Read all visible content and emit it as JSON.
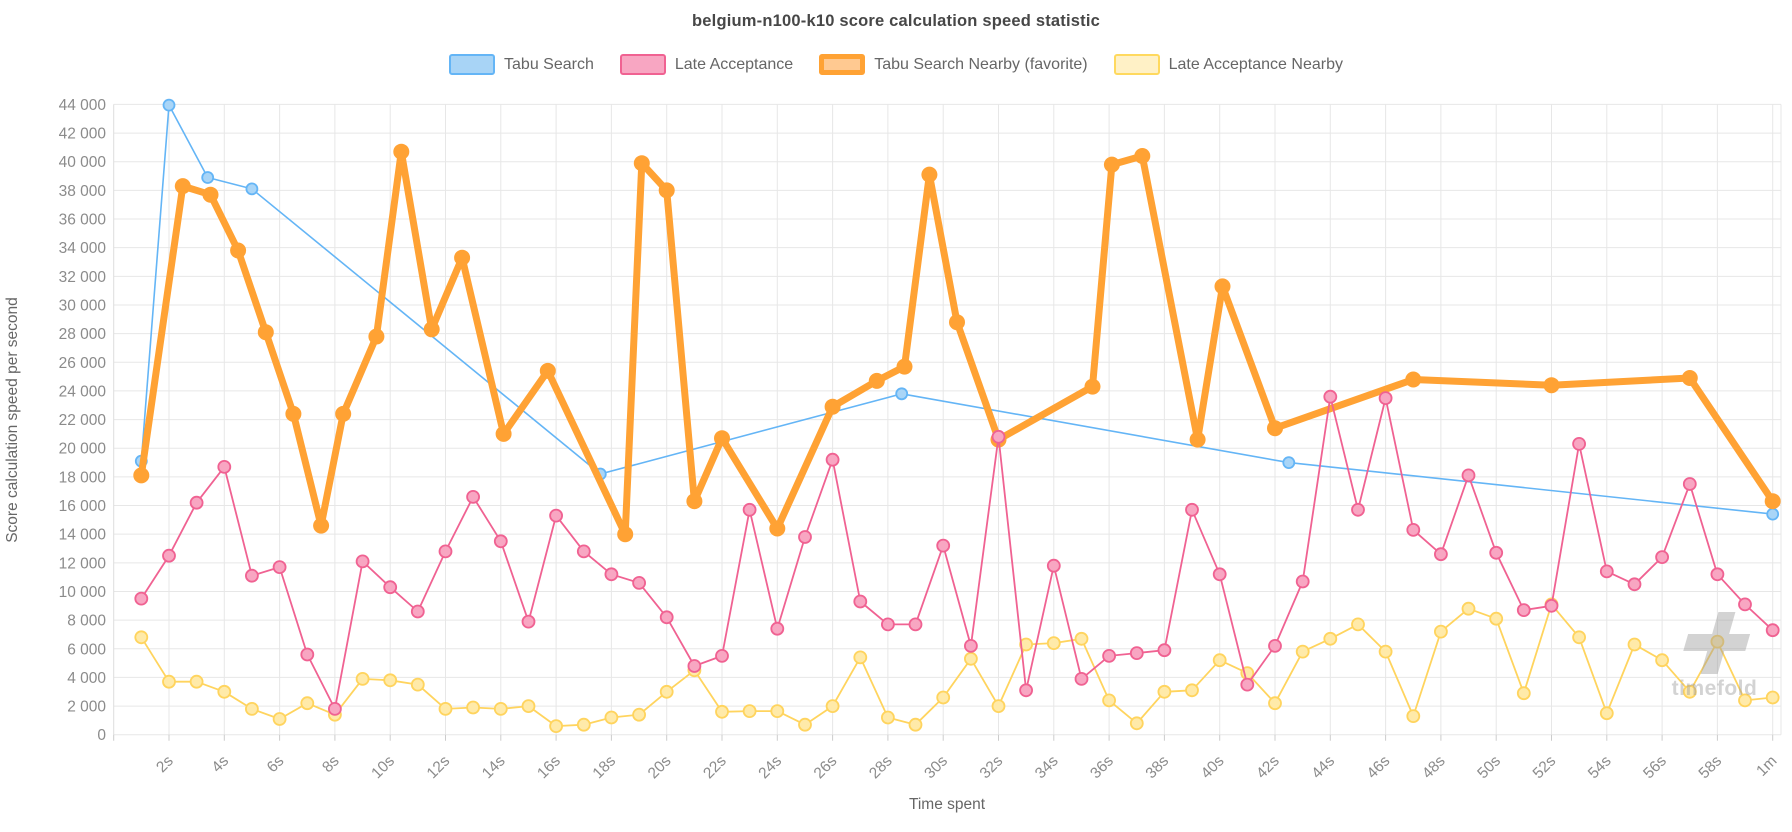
{
  "title": "belgium-n100-k10 score calculation speed statistic",
  "watermark": {
    "text": "timefold",
    "logo_icon": "timefold-plus-logo",
    "color": "#9e9e9e"
  },
  "chart_data": {
    "type": "line",
    "title": "belgium-n100-k10 score calculation speed statistic",
    "xlabel": "Time spent",
    "ylabel": "Score calculation speed per second",
    "ylim": [
      0,
      44000
    ],
    "ytick_step": 2000,
    "grid": true,
    "legend_position": "top",
    "y_tick_labels": [
      "0",
      "2 000",
      "4 000",
      "6 000",
      "8 000",
      "10 000",
      "12 000",
      "14 000",
      "16 000",
      "18 000",
      "20 000",
      "22 000",
      "24 000",
      "26 000",
      "28 000",
      "30 000",
      "32 000",
      "34 000",
      "36 000",
      "38 000",
      "40 000",
      "42 000",
      "44 000"
    ],
    "x_ticks": [
      {
        "t": 2,
        "label": "2s"
      },
      {
        "t": 4,
        "label": "4s"
      },
      {
        "t": 6,
        "label": "6s"
      },
      {
        "t": 8,
        "label": "8s"
      },
      {
        "t": 10,
        "label": "10s"
      },
      {
        "t": 12,
        "label": "12s"
      },
      {
        "t": 14,
        "label": "14s"
      },
      {
        "t": 16,
        "label": "16s"
      },
      {
        "t": 18,
        "label": "18s"
      },
      {
        "t": 20,
        "label": "20s"
      },
      {
        "t": 22,
        "label": "22s"
      },
      {
        "t": 24,
        "label": "24s"
      },
      {
        "t": 26,
        "label": "26s"
      },
      {
        "t": 28,
        "label": "28s"
      },
      {
        "t": 30,
        "label": "30s"
      },
      {
        "t": 32,
        "label": "32s"
      },
      {
        "t": 34,
        "label": "34s"
      },
      {
        "t": 36,
        "label": "36s"
      },
      {
        "t": 38,
        "label": "38s"
      },
      {
        "t": 40,
        "label": "40s"
      },
      {
        "t": 42,
        "label": "42s"
      },
      {
        "t": 44,
        "label": "44s"
      },
      {
        "t": 46,
        "label": "46s"
      },
      {
        "t": 48,
        "label": "48s"
      },
      {
        "t": 50,
        "label": "50s"
      },
      {
        "t": 52,
        "label": "52s"
      },
      {
        "t": 54,
        "label": "54s"
      },
      {
        "t": 56,
        "label": "56s"
      },
      {
        "t": 58,
        "label": "58s"
      },
      {
        "t": 60,
        "label": "1m"
      }
    ],
    "series": [
      {
        "name": "Tabu Search",
        "color": "#64b5f6",
        "marker_fill": "#a9d5f7",
        "line_width": 1.6,
        "marker_radius": 5.5,
        "favorite": false,
        "points": [
          [
            1,
            19100
          ],
          [
            2,
            43950
          ],
          [
            3.4,
            38900
          ],
          [
            5,
            38100
          ],
          [
            17.6,
            18200
          ],
          [
            28.5,
            23800
          ],
          [
            42.5,
            19000
          ],
          [
            60,
            15400
          ]
        ]
      },
      {
        "name": "Late Acceptance",
        "color": "#f06292",
        "marker_fill": "#f8a6c2",
        "line_width": 1.8,
        "marker_radius": 6,
        "favorite": false,
        "points": [
          [
            1,
            9500
          ],
          [
            2,
            12500
          ],
          [
            3,
            16200
          ],
          [
            4,
            18700
          ],
          [
            5,
            11100
          ],
          [
            6,
            11700
          ],
          [
            7,
            5600
          ],
          [
            8,
            1800
          ],
          [
            9,
            12100
          ],
          [
            10,
            10300
          ],
          [
            11,
            8600
          ],
          [
            12,
            12800
          ],
          [
            13,
            16600
          ],
          [
            14,
            13500
          ],
          [
            15,
            7900
          ],
          [
            16,
            15300
          ],
          [
            17,
            12800
          ],
          [
            18,
            11200
          ],
          [
            19,
            10600
          ],
          [
            20,
            8200
          ],
          [
            21,
            4800
          ],
          [
            22,
            5500
          ],
          [
            23,
            15700
          ],
          [
            24,
            7400
          ],
          [
            25,
            13800
          ],
          [
            26,
            19200
          ],
          [
            27,
            9300
          ],
          [
            28,
            7700
          ],
          [
            29,
            7700
          ],
          [
            30,
            13200
          ],
          [
            31,
            6200
          ],
          [
            32,
            20800
          ],
          [
            33,
            3100
          ],
          [
            34,
            11800
          ],
          [
            35,
            3900
          ],
          [
            36,
            5500
          ],
          [
            37,
            5700
          ],
          [
            38,
            5900
          ],
          [
            39,
            15700
          ],
          [
            40,
            11200
          ],
          [
            41,
            3500
          ],
          [
            42,
            6200
          ],
          [
            43,
            10700
          ],
          [
            44,
            23600
          ],
          [
            45,
            15700
          ],
          [
            46,
            23500
          ],
          [
            47,
            14300
          ],
          [
            48,
            12600
          ],
          [
            49,
            18100
          ],
          [
            50,
            12700
          ],
          [
            51,
            8700
          ],
          [
            52,
            9000
          ],
          [
            53,
            20300
          ],
          [
            54,
            11400
          ],
          [
            55,
            10500
          ],
          [
            56,
            12400
          ],
          [
            57,
            17500
          ],
          [
            58,
            11200
          ],
          [
            59,
            9100
          ],
          [
            60,
            7300
          ]
        ]
      },
      {
        "name": "Tabu Search Nearby (favorite)",
        "color": "#ffa234",
        "marker_fill": "#ffa234",
        "line_width": 7,
        "marker_radius": 8,
        "favorite": true,
        "points": [
          [
            1,
            18100
          ],
          [
            2.5,
            38300
          ],
          [
            3.5,
            37700
          ],
          [
            4.5,
            33800
          ],
          [
            5.5,
            28100
          ],
          [
            6.5,
            22400
          ],
          [
            7.5,
            14600
          ],
          [
            8.3,
            22400
          ],
          [
            9.5,
            27800
          ],
          [
            10.4,
            40700
          ],
          [
            11.5,
            28300
          ],
          [
            12.6,
            33300
          ],
          [
            14.1,
            21000
          ],
          [
            15.7,
            25400
          ],
          [
            18.5,
            14000
          ],
          [
            19.1,
            39900
          ],
          [
            20,
            38000
          ],
          [
            21,
            16300
          ],
          [
            22,
            20700
          ],
          [
            24,
            14400
          ],
          [
            26,
            22900
          ],
          [
            27.6,
            24700
          ],
          [
            28.6,
            25700
          ],
          [
            29.5,
            39100
          ],
          [
            30.5,
            28800
          ],
          [
            32,
            20600
          ],
          [
            35.4,
            24300
          ],
          [
            36.1,
            39800
          ],
          [
            37.2,
            40400
          ],
          [
            39.2,
            20600
          ],
          [
            40.1,
            31300
          ],
          [
            42,
            21400
          ],
          [
            47,
            24800
          ],
          [
            52,
            24400
          ],
          [
            57,
            24900
          ],
          [
            60,
            16300
          ]
        ]
      },
      {
        "name": "Late Acceptance Nearby",
        "color": "#ffd45e",
        "marker_fill": "#ffeaa9",
        "line_width": 1.8,
        "marker_radius": 6,
        "favorite": false,
        "points": [
          [
            1,
            6800
          ],
          [
            2,
            3700
          ],
          [
            3,
            3700
          ],
          [
            4,
            3000
          ],
          [
            5,
            1800
          ],
          [
            6,
            1100
          ],
          [
            7,
            2200
          ],
          [
            8,
            1400
          ],
          [
            9,
            3900
          ],
          [
            10,
            3800
          ],
          [
            11,
            3500
          ],
          [
            12,
            1800
          ],
          [
            13,
            1900
          ],
          [
            14,
            1800
          ],
          [
            15,
            2000
          ],
          [
            16,
            600
          ],
          [
            17,
            700
          ],
          [
            18,
            1200
          ],
          [
            19,
            1400
          ],
          [
            20,
            3000
          ],
          [
            21,
            4500
          ],
          [
            22,
            1600
          ],
          [
            23,
            1650
          ],
          [
            24,
            1650
          ],
          [
            25,
            700
          ],
          [
            26,
            2000
          ],
          [
            27,
            5400
          ],
          [
            28,
            1200
          ],
          [
            29,
            700
          ],
          [
            30,
            2600
          ],
          [
            31,
            5300
          ],
          [
            32,
            2000
          ],
          [
            33,
            6300
          ],
          [
            34,
            6400
          ],
          [
            35,
            6700
          ],
          [
            36,
            2400
          ],
          [
            37,
            800
          ],
          [
            38,
            3000
          ],
          [
            39,
            3100
          ],
          [
            40,
            5200
          ],
          [
            41,
            4300
          ],
          [
            42,
            2200
          ],
          [
            43,
            5800
          ],
          [
            44,
            6700
          ],
          [
            45,
            7700
          ],
          [
            46,
            5800
          ],
          [
            47,
            1300
          ],
          [
            48,
            7200
          ],
          [
            49,
            8800
          ],
          [
            50,
            8100
          ],
          [
            51,
            2900
          ],
          [
            52,
            9100
          ],
          [
            53,
            6800
          ],
          [
            54,
            1500
          ],
          [
            55,
            6300
          ],
          [
            56,
            5200
          ],
          [
            57,
            3000
          ],
          [
            58,
            6500
          ],
          [
            59,
            2400
          ],
          [
            60,
            2600
          ]
        ]
      }
    ]
  }
}
